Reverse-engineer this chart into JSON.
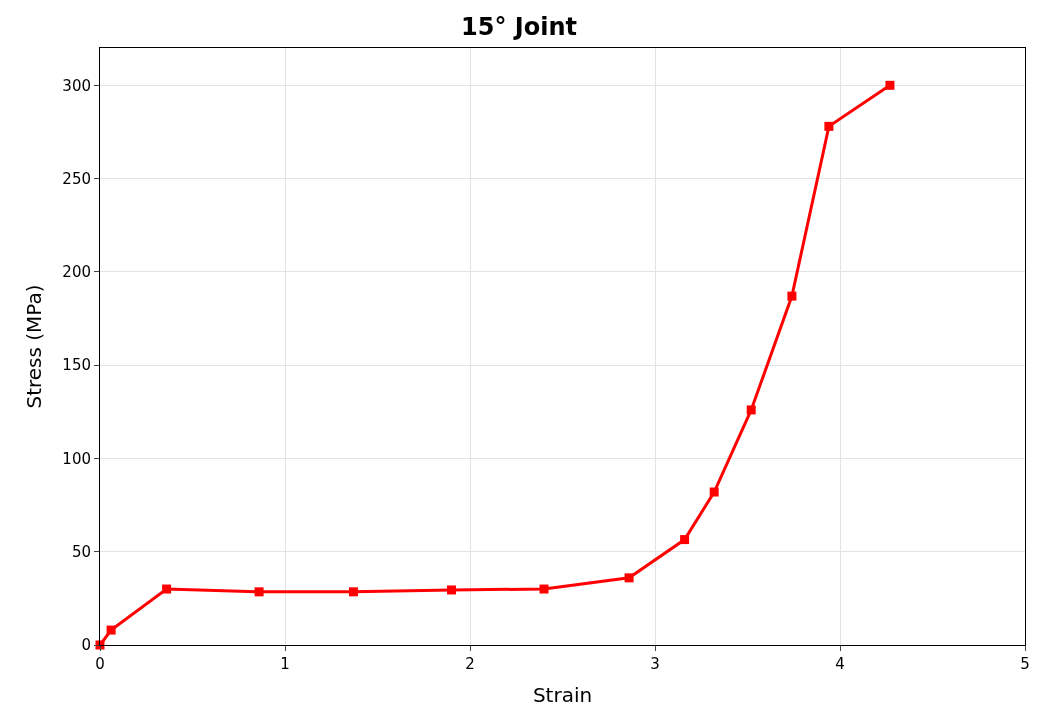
{
  "chart_data": {
    "type": "line",
    "title": "15° Joint",
    "xlabel": "Strain",
    "ylabel": "Stress (MPa)",
    "x": [
      0,
      0.06,
      0.36,
      0.86,
      1.37,
      1.9,
      2.4,
      2.86,
      3.16,
      3.32,
      3.52,
      3.74,
      3.94,
      4.27
    ],
    "series": [
      {
        "color": "#ff0000",
        "values": [
          0,
          8,
          30,
          28.5,
          28.5,
          29.5,
          30,
          36,
          56.5,
          82,
          126,
          187,
          278,
          300
        ]
      }
    ],
    "xlim": [
      0,
      5
    ],
    "ylim": [
      0,
      320
    ],
    "xticks": [
      0,
      1,
      2,
      3,
      4,
      5
    ],
    "yticks": [
      0,
      50,
      100,
      150,
      200,
      250,
      300
    ],
    "grid": true,
    "marker": "square",
    "line_style": "solid"
  }
}
